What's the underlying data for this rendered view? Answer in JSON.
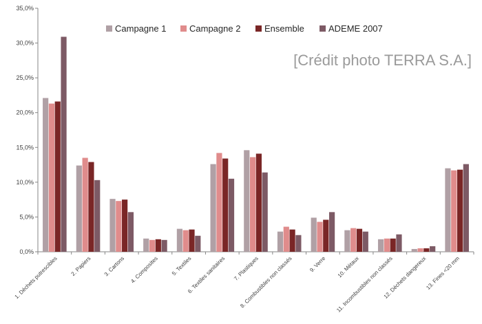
{
  "chart_data": {
    "type": "bar",
    "categories": [
      "1. Déchets putrescibles",
      "2. Papiers",
      "3. Cartons",
      "4. Composites",
      "5. Textiles",
      "6. Textiles sanitaires",
      "7. Plastiques",
      "8. Combustibles non classés",
      "9. Verre",
      "10. Métaux",
      "11. Incombustibles non classés",
      "12. Déchets dangereux",
      "13. Fines <20 mm"
    ],
    "series": [
      {
        "name": "Campagne 1",
        "color": "#b0a0a5",
        "values": [
          22.1,
          12.4,
          7.6,
          1.9,
          3.3,
          12.6,
          14.6,
          2.9,
          4.9,
          3.1,
          1.8,
          0.4,
          12.0
        ]
      },
      {
        "name": "Campagne 2",
        "color": "#e08c8c",
        "values": [
          21.3,
          13.5,
          7.3,
          1.7,
          3.1,
          14.2,
          13.6,
          3.6,
          4.3,
          3.4,
          1.9,
          0.5,
          11.7
        ]
      },
      {
        "name": "Ensemble",
        "color": "#7a2626",
        "values": [
          21.6,
          12.9,
          7.5,
          1.8,
          3.2,
          13.4,
          14.1,
          3.2,
          4.6,
          3.3,
          1.9,
          0.5,
          11.8
        ]
      },
      {
        "name": "ADEME 2007",
        "color": "#7d5a65",
        "values": [
          30.9,
          10.3,
          5.7,
          1.7,
          2.3,
          10.5,
          11.4,
          2.4,
          5.7,
          2.9,
          2.5,
          0.8,
          12.6
        ]
      }
    ],
    "yticks": [
      "0,0%",
      "5,0%",
      "10,0%",
      "15,0%",
      "20,0%",
      "25,0%",
      "30,0%",
      "35,0%"
    ],
    "ylim": [
      0,
      35
    ],
    "legend_position": "top",
    "grid": false,
    "title": "",
    "xlabel": "",
    "ylabel": ""
  },
  "credit_text": "[Crédit photo TERRA S.A.]"
}
